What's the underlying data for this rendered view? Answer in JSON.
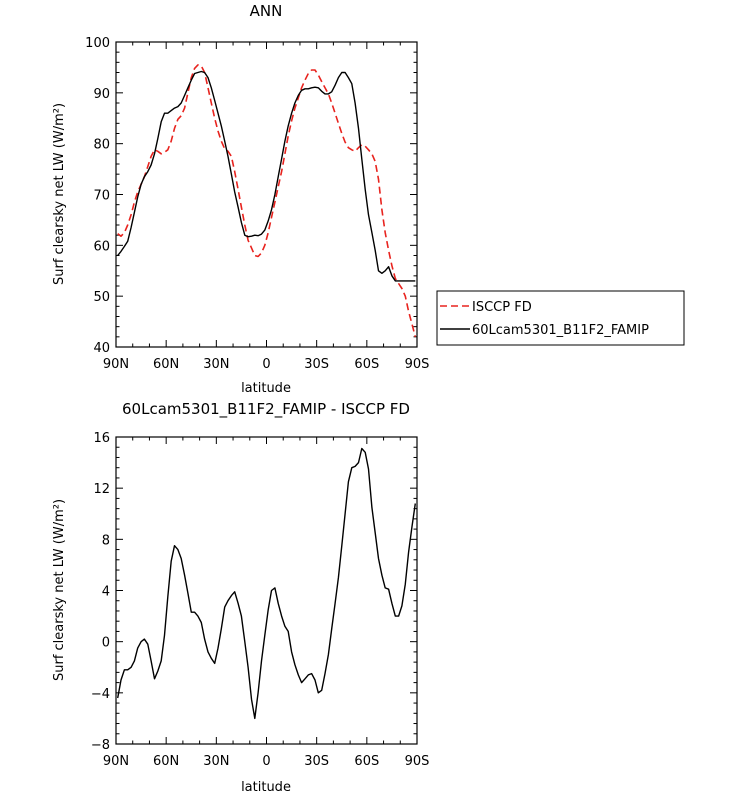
{
  "chart_data": [
    {
      "type": "line",
      "title": "ANN",
      "xlabel": "latitude",
      "ylabel": "Surf clearsky net LW (W/m²)",
      "xlim": [
        90,
        -90
      ],
      "ylim": [
        40,
        100
      ],
      "x_ticks": [
        90,
        60,
        30,
        0,
        -30,
        -60,
        -90
      ],
      "x_tick_labels": [
        "90N",
        "60N",
        "30N",
        "0",
        "30S",
        "60S",
        "90S"
      ],
      "y_ticks": [
        40,
        50,
        60,
        70,
        80,
        90,
        100
      ],
      "y_tick_labels": [
        "40",
        "50",
        "60",
        "70",
        "80",
        "90",
        "100"
      ],
      "legend_position": "bottom-right-outside",
      "series": [
        {
          "name": "ISCCP FD",
          "color": "#e8231e",
          "dash": "dashed",
          "x": [
            89,
            87,
            85,
            83,
            81,
            79,
            77,
            75,
            73,
            71,
            69,
            67,
            65,
            63,
            61,
            59,
            57,
            55,
            53,
            51,
            49,
            47,
            45,
            43,
            41,
            39,
            37,
            35,
            33,
            31,
            29,
            27,
            25,
            23,
            21,
            19,
            17,
            15,
            13,
            11,
            9,
            7,
            5,
            3,
            1,
            -1,
            -3,
            -5,
            -7,
            -9,
            -11,
            -13,
            -15,
            -17,
            -19,
            -21,
            -23,
            -25,
            -27,
            -29,
            -31,
            -33,
            -35,
            -37,
            -39,
            -41,
            -43,
            -45,
            -47,
            -49,
            -51,
            -53,
            -55,
            -57,
            -59,
            -61,
            -63,
            -65,
            -67,
            -69,
            -71,
            -73,
            -75,
            -77,
            -79,
            -81,
            -83,
            -85,
            -87,
            -89
          ],
          "values": [
            62.3,
            61.8,
            62.5,
            64.0,
            66.0,
            68.5,
            70.5,
            72.0,
            73.5,
            75.5,
            77.5,
            78.8,
            78.5,
            78.0,
            78.3,
            78.8,
            80.5,
            83.0,
            84.8,
            85.5,
            87.0,
            90.0,
            93.0,
            94.8,
            95.5,
            95.3,
            94.0,
            91.0,
            88.0,
            85.0,
            82.5,
            80.5,
            79.0,
            78.5,
            77.5,
            74.5,
            71.0,
            67.5,
            64.0,
            61.0,
            59.5,
            58.0,
            57.8,
            58.5,
            60.0,
            62.5,
            65.5,
            68.5,
            71.5,
            74.5,
            78.0,
            81.5,
            84.5,
            87.0,
            89.0,
            91.0,
            92.5,
            93.8,
            94.5,
            94.5,
            93.5,
            92.2,
            91.0,
            89.8,
            88.0,
            86.0,
            84.0,
            82.0,
            80.3,
            79.2,
            78.8,
            78.5,
            79.2,
            79.8,
            79.5,
            78.8,
            78.0,
            76.5,
            73.0,
            67.0,
            62.5,
            59.0,
            56.0,
            53.5,
            52.5,
            51.5,
            50.0,
            47.0,
            44.5,
            42.0
          ]
        },
        {
          "name": "60Lcam5301_B11F2_FAMIP",
          "color": "#000000",
          "dash": "solid",
          "x": [
            89,
            87,
            85,
            83,
            81,
            79,
            77,
            75,
            73,
            71,
            69,
            67,
            65,
            63,
            61,
            59,
            57,
            55,
            53,
            51,
            49,
            47,
            45,
            43,
            41,
            39,
            37,
            35,
            33,
            31,
            29,
            27,
            25,
            23,
            21,
            19,
            17,
            15,
            13,
            11,
            9,
            7,
            5,
            3,
            1,
            -1,
            -3,
            -5,
            -7,
            -9,
            -11,
            -13,
            -15,
            -17,
            -19,
            -21,
            -23,
            -25,
            -27,
            -29,
            -31,
            -33,
            -35,
            -37,
            -39,
            -41,
            -43,
            -45,
            -47,
            -49,
            -51,
            -53,
            -55,
            -57,
            -59,
            -61,
            -63,
            -65,
            -67,
            -69,
            -71,
            -73,
            -75,
            -77,
            -79,
            -81,
            -83,
            -85,
            -87,
            -89
          ],
          "values": [
            58.0,
            58.8,
            59.8,
            60.8,
            63.5,
            66.5,
            69.5,
            72.0,
            73.5,
            74.5,
            75.8,
            78.0,
            81.0,
            84.3,
            86.0,
            86.0,
            86.5,
            87.0,
            87.3,
            88.0,
            89.5,
            91.0,
            92.5,
            93.8,
            94.0,
            94.2,
            94.0,
            93.0,
            91.0,
            88.5,
            86.0,
            83.5,
            80.5,
            77.5,
            74.0,
            70.5,
            67.5,
            64.5,
            62.0,
            61.7,
            61.8,
            62.0,
            61.9,
            62.2,
            63.0,
            64.8,
            67.0,
            70.0,
            73.5,
            77.0,
            80.5,
            83.5,
            86.0,
            88.0,
            89.5,
            90.5,
            90.8,
            90.8,
            91.0,
            91.1,
            91.0,
            90.3,
            89.8,
            89.8,
            90.2,
            91.5,
            93.0,
            94.0,
            94.0,
            93.0,
            91.8,
            88.0,
            83.0,
            77.0,
            71.0,
            66.0,
            62.5,
            59.0,
            55.0,
            54.5,
            55.0,
            55.8,
            54.0,
            53.0,
            53.0,
            53.0,
            53.0,
            53.0,
            53.0,
            53.0
          ]
        }
      ]
    },
    {
      "type": "line",
      "title": "60Lcam5301_B11F2_FAMIP - ISCCP FD",
      "xlabel": "latitude",
      "ylabel": "Surf clearsky net LW (W/m²)",
      "xlim": [
        90,
        -90
      ],
      "ylim": [
        -8,
        16
      ],
      "x_ticks": [
        90,
        60,
        30,
        0,
        -30,
        -60,
        -90
      ],
      "x_tick_labels": [
        "90N",
        "60N",
        "30N",
        "0",
        "30S",
        "60S",
        "90S"
      ],
      "y_ticks": [
        -8,
        -4,
        0,
        4,
        8,
        12,
        16
      ],
      "y_tick_labels": [
        "−8",
        "−4",
        "0",
        "4",
        "8",
        "12",
        "16"
      ],
      "series": [
        {
          "color": "#000000",
          "dash": "solid",
          "x": [
            89,
            87,
            85,
            83,
            81,
            79,
            77,
            75,
            73,
            71,
            69,
            67,
            65,
            63,
            61,
            59,
            57,
            55,
            53,
            51,
            49,
            47,
            45,
            43,
            41,
            39,
            37,
            35,
            33,
            31,
            29,
            27,
            25,
            23,
            21,
            19,
            17,
            15,
            13,
            11,
            9,
            7,
            5,
            3,
            1,
            -1,
            -3,
            -5,
            -7,
            -9,
            -11,
            -13,
            -15,
            -17,
            -19,
            -21,
            -23,
            -25,
            -27,
            -29,
            -31,
            -33,
            -35,
            -37,
            -39,
            -41,
            -43,
            -45,
            -47,
            -49,
            -51,
            -53,
            -55,
            -57,
            -59,
            -61,
            -63,
            -65,
            -67,
            -69,
            -71,
            -73,
            -75,
            -77,
            -79,
            -81,
            -83,
            -85,
            -87,
            -89
          ],
          "values": [
            -4.4,
            -3.0,
            -2.2,
            -2.2,
            -2.0,
            -1.5,
            -0.5,
            0.0,
            0.2,
            -0.2,
            -1.5,
            -2.9,
            -2.3,
            -1.5,
            0.5,
            3.5,
            6.3,
            7.5,
            7.2,
            6.5,
            5.2,
            3.8,
            2.3,
            2.3,
            2.0,
            1.5,
            0.2,
            -0.8,
            -1.3,
            -1.7,
            -0.5,
            1.0,
            2.7,
            3.2,
            3.6,
            3.9,
            3.0,
            2.0,
            0.0,
            -2.0,
            -4.5,
            -6.0,
            -4.0,
            -1.5,
            0.5,
            2.5,
            4.0,
            4.2,
            3.0,
            2.0,
            1.2,
            0.8,
            -0.8,
            -1.8,
            -2.6,
            -3.2,
            -2.9,
            -2.6,
            -2.5,
            -3.0,
            -4.0,
            -3.8,
            -2.5,
            -1.0,
            1.0,
            3.0,
            5.0,
            7.5,
            10.0,
            12.5,
            13.6,
            13.7,
            14.0,
            15.1,
            14.8,
            13.5,
            10.5,
            8.5,
            6.5,
            5.2,
            4.2,
            4.1,
            3.0,
            2.0,
            2.0,
            2.8,
            4.5,
            7.0,
            9.0,
            10.8
          ]
        }
      ]
    }
  ]
}
